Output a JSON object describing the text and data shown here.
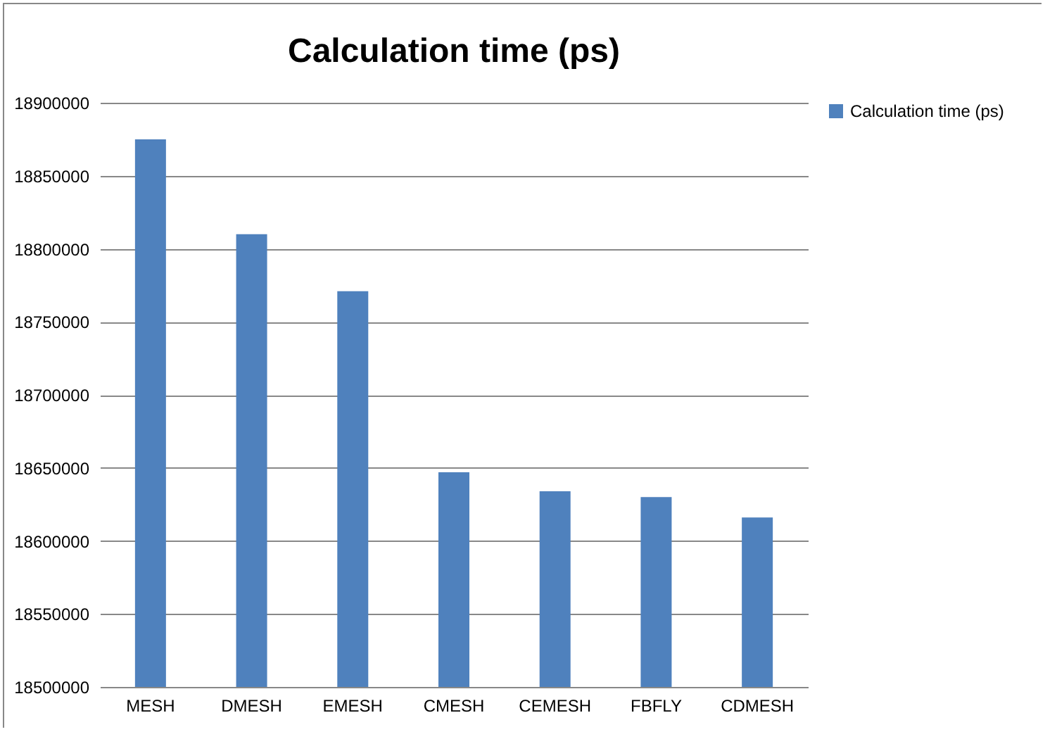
{
  "chart_data": {
    "type": "bar",
    "title": "Calculation time (ps)",
    "categories": [
      "MESH",
      "DMESH",
      "EMESH",
      "CMESH",
      "CEMESH",
      "FBFLY",
      "CDMESH"
    ],
    "series": [
      {
        "name": "Calculation time (ps)",
        "color": "#4f81bd",
        "values": [
          18875000,
          18810000,
          18771000,
          18647000,
          18634000,
          18630000,
          18616000
        ]
      }
    ],
    "ylim": [
      18500000,
      18900000
    ],
    "yticks": [
      18500000,
      18550000,
      18600000,
      18650000,
      18700000,
      18750000,
      18800000,
      18850000,
      18900000
    ],
    "grid": "y",
    "legend": "right"
  }
}
